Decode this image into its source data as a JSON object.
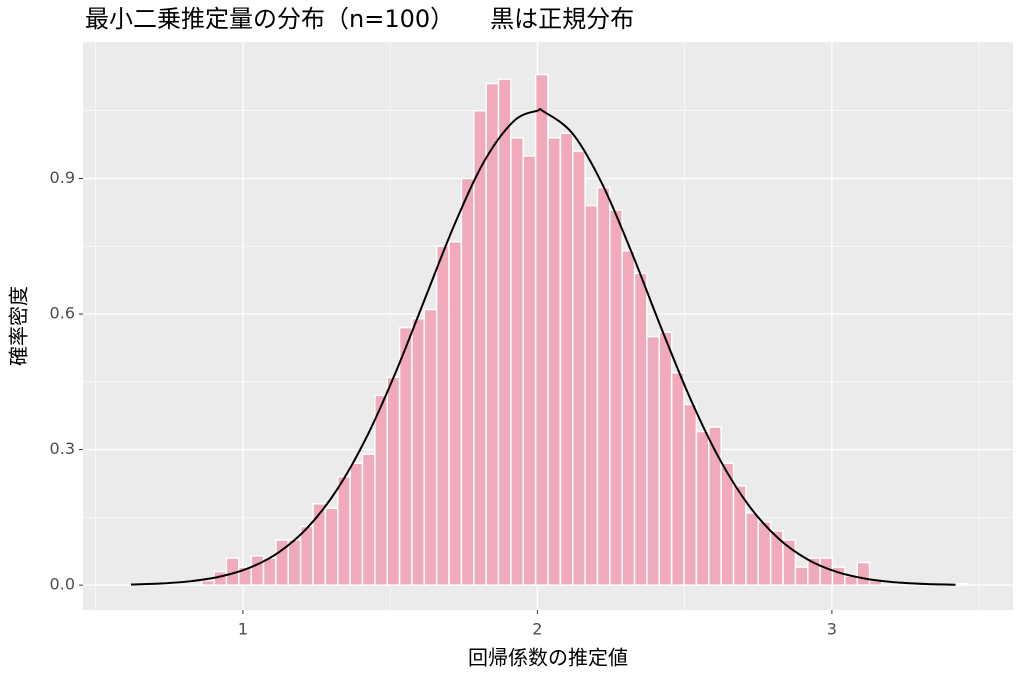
{
  "chart_data": {
    "type": "histogram",
    "title": "最小二乗推定量の分布（n=100）　　黒は正規分布",
    "x_label": "回帰係数の推定値",
    "y_label": "確率密度",
    "bins": [
      0.86,
      0.902,
      0.944,
      0.986,
      1.028,
      1.07,
      1.112,
      1.154,
      1.196,
      1.238,
      1.28,
      1.322,
      1.364,
      1.406,
      1.448,
      1.49,
      1.532,
      1.574,
      1.616,
      1.658,
      1.7,
      1.742,
      1.784,
      1.826,
      1.868,
      1.91,
      1.952,
      1.994,
      2.036,
      2.078,
      2.12,
      2.162,
      2.204,
      2.246,
      2.288,
      2.33,
      2.372,
      2.414,
      2.456,
      2.498,
      2.54,
      2.582,
      2.624,
      2.666,
      2.708,
      2.75,
      2.792,
      2.834,
      2.876,
      2.918,
      2.96,
      3.002,
      3.044,
      3.086,
      3.128,
      3.17,
      3.212,
      3.254,
      3.296,
      3.338,
      3.38,
      3.422,
      3.464
    ],
    "values": [
      0.01,
      0.03,
      0.06,
      0.04,
      0.065,
      0.06,
      0.1,
      0.1,
      0.13,
      0.18,
      0.17,
      0.24,
      0.27,
      0.29,
      0.42,
      0.46,
      0.57,
      0.59,
      0.61,
      0.75,
      0.76,
      0.9,
      1.05,
      1.11,
      1.12,
      0.99,
      0.95,
      1.13,
      0.99,
      1.0,
      0.96,
      0.84,
      0.88,
      0.83,
      0.74,
      0.69,
      0.55,
      0.56,
      0.47,
      0.4,
      0.34,
      0.35,
      0.27,
      0.22,
      0.16,
      0.14,
      0.12,
      0.1,
      0.04,
      0.06,
      0.06,
      0.04,
      0.02,
      0.05,
      0.01,
      0,
      0,
      0,
      0,
      0,
      0,
      0.003
    ],
    "color": "#f0aabb",
    "curve": {
      "color": "#000000",
      "x": [
        0.62,
        0.72,
        0.82,
        0.92,
        1.02,
        1.12,
        1.22,
        1.32,
        1.42,
        1.52,
        1.62,
        1.72,
        1.82,
        1.92,
        2.0,
        2.02,
        2.12,
        2.22,
        2.32,
        2.42,
        2.52,
        2.62,
        2.72,
        2.82,
        2.92,
        3.02,
        3.12,
        3.22,
        3.32,
        3.42
      ],
      "y": [
        0.0014,
        0.0036,
        0.0085,
        0.0185,
        0.0377,
        0.0719,
        0.1277,
        0.2118,
        0.3276,
        0.4728,
        0.6369,
        0.8003,
        0.9386,
        1.027,
        1.05,
        1.0486,
        0.999,
        0.888,
        0.7365,
        0.57,
        0.4117,
        0.2774,
        0.1744,
        0.1024,
        0.056,
        0.0286,
        0.0136,
        0.0061,
        0.0025,
        0.001
      ]
    },
    "xlim": [
      0.457,
      3.615
    ],
    "ylim": [
      -0.055,
      1.202
    ],
    "xticks": [
      1,
      2,
      3
    ],
    "yticks": [
      {
        "value": 0,
        "label": "0.0"
      },
      0.3,
      0.6,
      0.9
    ],
    "grid": true
  }
}
